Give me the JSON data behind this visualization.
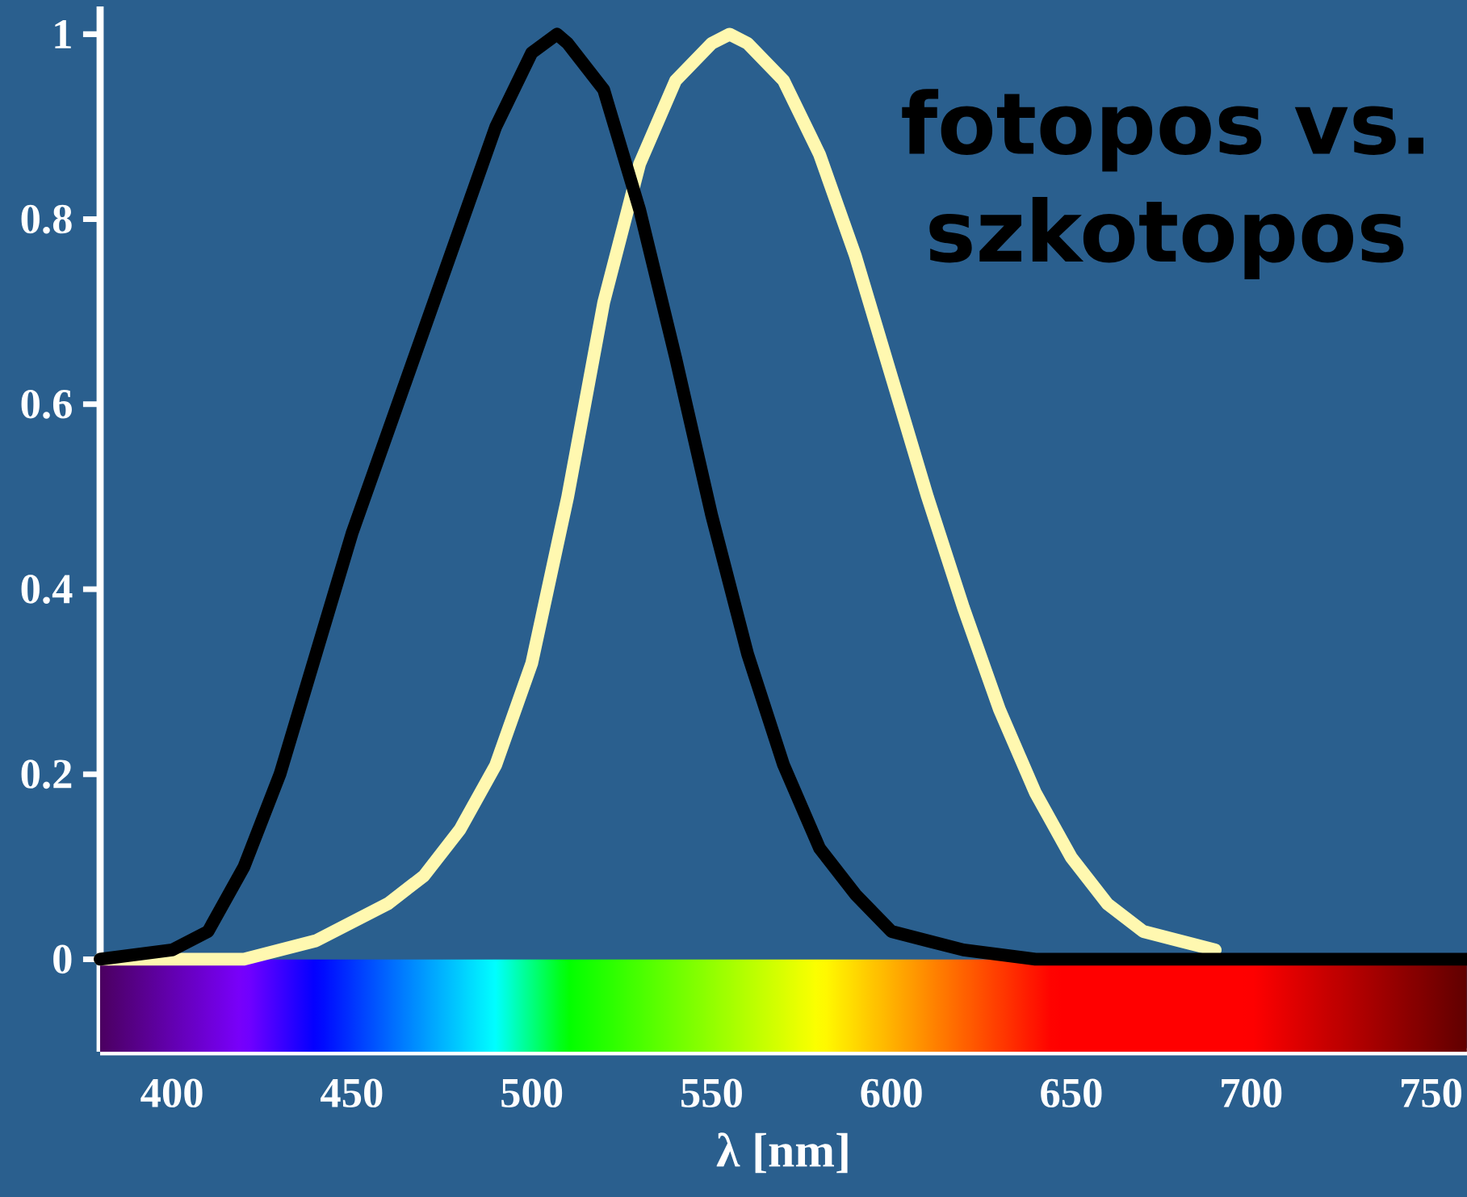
{
  "chart_data": {
    "type": "line",
    "annotations": [
      "fotopos vs. szkotopos"
    ],
    "xlabel": "λ [nm]",
    "xlim": [
      380,
      760
    ],
    "ylim": [
      -0.1,
      1.03
    ],
    "xticks": [
      400,
      450,
      500,
      550,
      600,
      650,
      700,
      750
    ],
    "yticks": [
      0,
      0.2,
      0.4,
      0.6,
      0.8,
      1
    ],
    "bands": [
      {
        "axis": "y",
        "from": -0.1,
        "to": 0
      }
    ],
    "grid": false,
    "marker": "none",
    "line_style": "solid",
    "series": [
      {
        "color": "#fff8b0",
        "x": [
          380,
          400,
          420,
          430,
          440,
          450,
          460,
          470,
          480,
          490,
          500,
          510,
          520,
          530,
          540,
          550,
          555,
          560,
          570,
          580,
          590,
          600,
          610,
          620,
          630,
          640,
          650,
          660,
          670,
          680,
          690
        ],
        "values": [
          0,
          0,
          0,
          0.01,
          0.02,
          0.04,
          0.06,
          0.09,
          0.14,
          0.21,
          0.32,
          0.5,
          0.71,
          0.86,
          0.95,
          0.99,
          1,
          0.99,
          0.95,
          0.87,
          0.76,
          0.63,
          0.5,
          0.38,
          0.27,
          0.18,
          0.11,
          0.06,
          0.03,
          0.02,
          0.01
        ]
      },
      {
        "color": "#000000",
        "x": [
          380,
          400,
          410,
          420,
          430,
          440,
          450,
          460,
          470,
          480,
          490,
          500,
          507,
          510,
          520,
          530,
          540,
          550,
          560,
          570,
          580,
          590,
          600,
          610,
          620,
          640,
          660,
          700,
          760
        ],
        "values": [
          0,
          0.01,
          0.03,
          0.1,
          0.2,
          0.33,
          0.46,
          0.57,
          0.68,
          0.79,
          0.9,
          0.98,
          1,
          0.99,
          0.94,
          0.81,
          0.65,
          0.48,
          0.33,
          0.21,
          0.12,
          0.07,
          0.03,
          0.02,
          0.01,
          0,
          0,
          0,
          0
        ]
      }
    ]
  }
}
